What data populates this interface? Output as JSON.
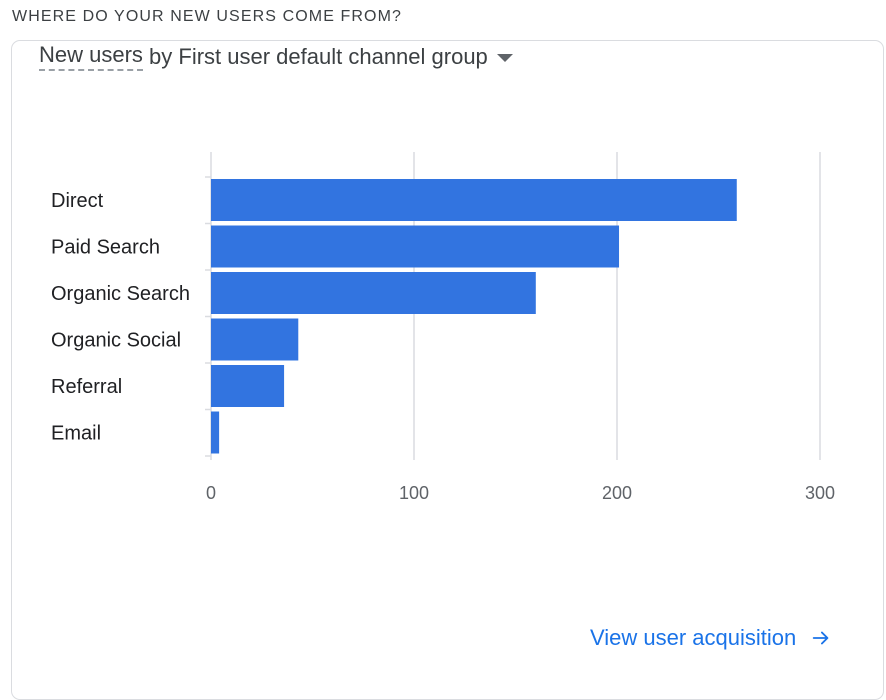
{
  "section": {
    "heading": "WHERE DO YOUR NEW USERS COME FROM?"
  },
  "card": {
    "title_metric": "New users",
    "title_sep": " by ",
    "title_dimension": "First user default channel group",
    "link_label": "View user acquisition"
  },
  "icons": {
    "dropdown": "caret-down-icon",
    "link": "arrow-right-icon"
  },
  "colors": {
    "bar": "#3274e0",
    "grid": "#dadce0",
    "link": "#1a73e8"
  },
  "chart_data": {
    "type": "bar",
    "orientation": "horizontal",
    "categories": [
      "Direct",
      "Paid Search",
      "Organic Search",
      "Organic Social",
      "Referral",
      "Email"
    ],
    "values": [
      259,
      201,
      160,
      43,
      36,
      4
    ],
    "xlim": [
      0,
      300
    ],
    "xticks": [
      "0",
      "100",
      "200",
      "300"
    ],
    "grid": true,
    "legend": "none"
  }
}
